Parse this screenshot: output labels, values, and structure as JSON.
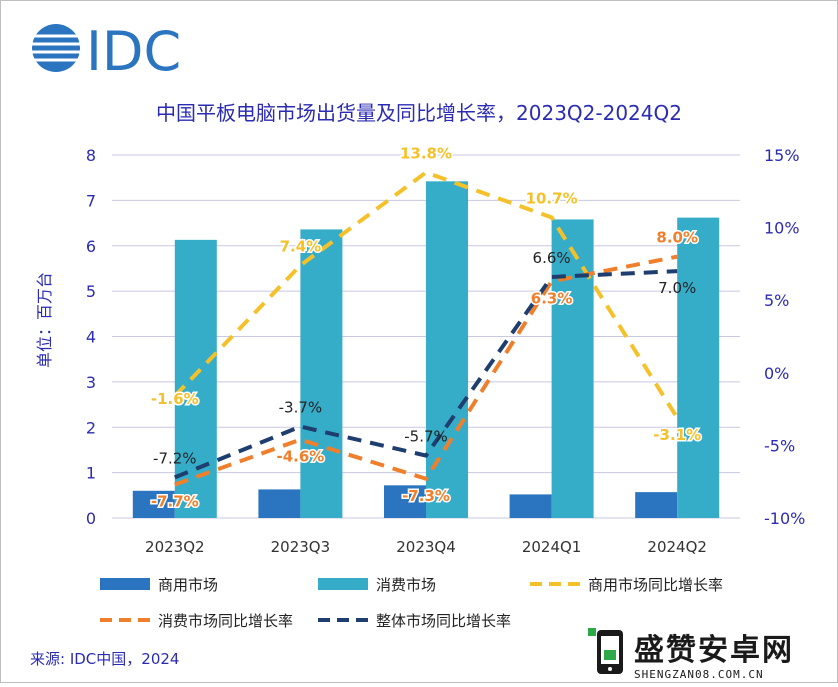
{
  "logo_text": "IDC",
  "colors": {
    "commercial": "#2a74c0",
    "consumer": "#35adc9",
    "commercial_yoy": "#f5c12a",
    "consumer_yoy": "#f07f2c",
    "overall_yoy": "#1d3e6e",
    "axis_text": "#2b2bb3"
  },
  "source": "来源: IDC中国，2024",
  "watermark": {
    "title": "盛赞安卓网",
    "url": "SHENGZAN08.COM.CN"
  },
  "chart_data": {
    "type": "bar",
    "title": "中国平板电脑市场出货量及同比增长率，2023Q2-2024Q2",
    "ylabel": "单位：百万台",
    "categories": [
      "2023Q2",
      "2023Q3",
      "2023Q4",
      "2024Q1",
      "2024Q2"
    ],
    "ylim": [
      0,
      8
    ],
    "y_ticks": [
      "0",
      "1",
      "2",
      "3",
      "4",
      "5",
      "6",
      "7",
      "8"
    ],
    "y2lim": [
      -10,
      15
    ],
    "y2_ticks": [
      "-10%",
      "-5%",
      "0%",
      "5%",
      "10%",
      "15%"
    ],
    "series": [
      {
        "name": "商用市场",
        "type": "bar",
        "axis": "left",
        "values": [
          0.6,
          0.63,
          0.72,
          0.52,
          0.57
        ]
      },
      {
        "name": "消费市场",
        "type": "bar",
        "axis": "left",
        "values": [
          6.13,
          6.36,
          7.42,
          6.58,
          6.62
        ]
      },
      {
        "name": "商用市场同比增长率",
        "type": "line",
        "axis": "right",
        "values": [
          -1.6,
          7.4,
          13.8,
          10.7,
          -3.1
        ],
        "labels": [
          "-1.6%",
          "7.4%",
          "13.8%",
          "10.7%",
          "-3.1%"
        ]
      },
      {
        "name": "消费市场同比增长率",
        "type": "line",
        "axis": "right",
        "values": [
          -7.7,
          -4.6,
          -7.3,
          6.3,
          8.0
        ],
        "labels": [
          "-7.7%",
          "-4.6%",
          "-7.3%",
          "6.3%",
          "8.0%"
        ]
      },
      {
        "name": "整体市场同比增长率",
        "type": "line",
        "axis": "right",
        "values": [
          -7.2,
          -3.7,
          -5.7,
          6.6,
          7.0
        ],
        "labels": [
          "-7.2%",
          "-3.7%",
          "-5.7%",
          "6.6%",
          "7.0%"
        ]
      }
    ],
    "legend_position": "bottom",
    "grid": true
  }
}
